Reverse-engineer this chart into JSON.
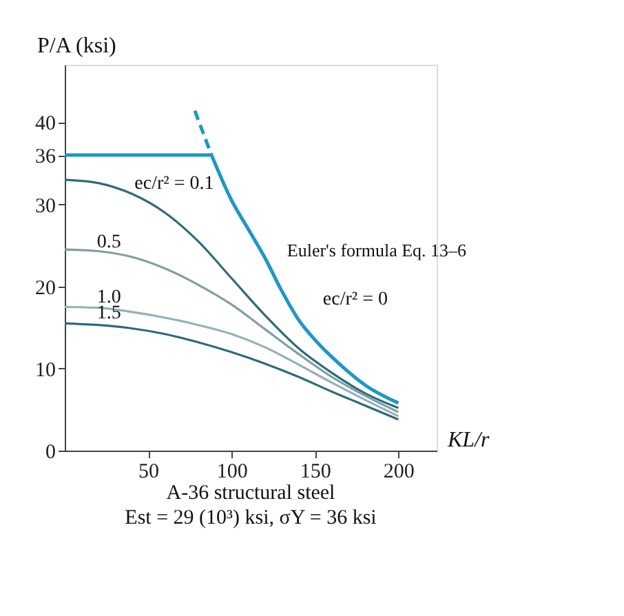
{
  "chart_data": {
    "type": "line",
    "xlabel": "KL/r",
    "ylabel": "P/A (ksi)",
    "xlim": [
      0,
      223
    ],
    "xticks": [
      50,
      100,
      150,
      200
    ],
    "ylim": [
      0,
      47
    ],
    "yticks": [
      0,
      10,
      20,
      30,
      36,
      40
    ],
    "grid": false,
    "marker": "none",
    "series": [
      {
        "name": "ec/r² = 0.1",
        "color": "#2d6b7c",
        "x": [
          0,
          20,
          40,
          60,
          80,
          100,
          120,
          140,
          160,
          180,
          200
        ],
        "values": [
          33,
          32.6,
          31.3,
          29,
          25.5,
          21,
          16.5,
          12.5,
          9.5,
          7,
          5.2
        ]
      },
      {
        "name": "0.5",
        "color": "#7f9ea6",
        "x": [
          0,
          20,
          40,
          60,
          80,
          100,
          120,
          140,
          160,
          180,
          200
        ],
        "values": [
          24.5,
          24.3,
          23.6,
          22.2,
          20.2,
          17.8,
          14.8,
          11.8,
          9,
          6.7,
          4.7
        ]
      },
      {
        "name": "1.0",
        "color": "#93b1b8",
        "x": [
          0,
          20,
          40,
          60,
          80,
          100,
          120,
          140,
          160,
          180,
          200
        ],
        "values": [
          17.5,
          17.4,
          16.9,
          16.2,
          15.3,
          14.2,
          12.6,
          10.5,
          8.3,
          6.2,
          4.2
        ]
      },
      {
        "name": "1.5",
        "color": "#2d6b7c",
        "x": [
          0,
          20,
          40,
          60,
          80,
          100,
          120,
          140,
          160,
          180,
          200
        ],
        "values": [
          15.5,
          15.3,
          14.9,
          14.2,
          13.2,
          12,
          10.6,
          9,
          7.2,
          5.5,
          3.8
        ]
      },
      {
        "name": "Euler's formula Eq. 13–6",
        "color": "#1e96c8",
        "x": [
          88,
          100,
          110,
          120,
          130,
          140,
          150,
          165,
          180,
          200
        ],
        "values": [
          36,
          30.5,
          27,
          23.5,
          19.5,
          16,
          13.5,
          10.5,
          8,
          5.8
        ]
      },
      {
        "color": "#1e96c8",
        "line_style": "dashed",
        "x": [
          78,
          88
        ],
        "values": [
          41.4,
          36
        ]
      },
      {
        "color": "#1e96c8",
        "x": [
          0,
          88
        ],
        "values": [
          36,
          36
        ]
      }
    ],
    "annotations": [
      "ec/r² = 0",
      "A-36 structural steel",
      "Est = 29 (10³) ksi, σY = 36 ksi"
    ]
  }
}
